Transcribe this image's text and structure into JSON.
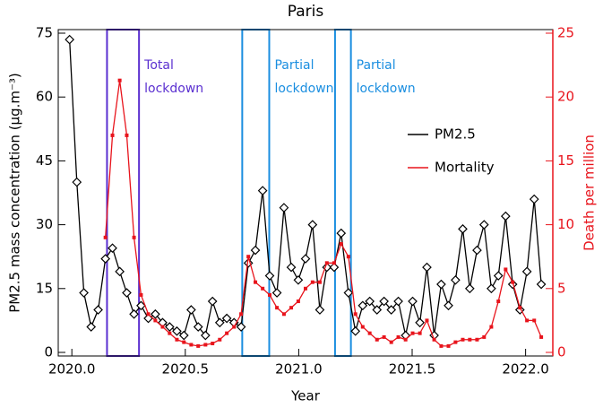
{
  "chart_data": {
    "type": "line",
    "title": "Paris",
    "xlabel": "Year",
    "ylabel": "PM2.5 mass concentration (μg.m⁻³)",
    "y2label": "Death per million",
    "xlim": [
      2019.94,
      2022.12
    ],
    "xticks": [
      {
        "value": 2020,
        "label": "2020.0"
      },
      2020.5,
      {
        "value": 2021,
        "label": "2021.0"
      },
      2021.5,
      {
        "value": 2022,
        "label": "2022.0"
      }
    ],
    "ylim": [
      0,
      75
    ],
    "yticks": [
      0,
      15,
      30,
      45,
      60,
      75
    ],
    "y2lim": [
      0,
      25
    ],
    "y2ticks": [
      0,
      5,
      10,
      15,
      20,
      25
    ],
    "legend": "right",
    "x": [
      2019.99,
      2020.022,
      2020.053,
      2020.085,
      2020.116,
      2020.148,
      2020.179,
      2020.211,
      2020.242,
      2020.274,
      2020.305,
      2020.337,
      2020.368,
      2020.4,
      2020.431,
      2020.463,
      2020.494,
      2020.526,
      2020.557,
      2020.589,
      2020.62,
      2020.652,
      2020.683,
      2020.715,
      2020.746,
      2020.778,
      2020.809,
      2020.841,
      2020.872,
      2020.904,
      2020.935,
      2020.967,
      2020.998,
      2021.03,
      2021.061,
      2021.093,
      2021.124,
      2021.156,
      2021.187,
      2021.219,
      2021.25,
      2021.282,
      2021.313,
      2021.345,
      2021.376,
      2021.408,
      2021.439,
      2021.471,
      2021.502,
      2021.534,
      2021.565,
      2021.597,
      2021.628,
      2021.66,
      2021.691,
      2021.723,
      2021.754,
      2021.786,
      2021.817,
      2021.849,
      2021.88,
      2021.912,
      2021.943,
      2021.975,
      2022.006,
      2022.038,
      2022.069
    ],
    "series": [
      {
        "name": "PM2.5",
        "color": "#000000",
        "marker": "diamond",
        "values": [
          73.5,
          40,
          14,
          6,
          10,
          22,
          24.5,
          19,
          14,
          9,
          11,
          8,
          9,
          7,
          6,
          5,
          4,
          10,
          6,
          4,
          12,
          7,
          8,
          7,
          6,
          21,
          24,
          38,
          18,
          14,
          34,
          20,
          17,
          22,
          30,
          10,
          20,
          20,
          28,
          14,
          5,
          11,
          12,
          10,
          12,
          10,
          12,
          4,
          12,
          7,
          20,
          4,
          16,
          11,
          17,
          29,
          15,
          24,
          30,
          15,
          18,
          32,
          16,
          10,
          19,
          36,
          16
        ]
      },
      {
        "name": "Mortality",
        "color": "#e8141c",
        "marker": "square",
        "axis": "y2",
        "values": [
          null,
          null,
          null,
          null,
          null,
          9,
          17,
          21.3,
          17,
          9,
          4.5,
          3,
          2.5,
          2,
          1.5,
          1,
          0.8,
          0.6,
          0.5,
          0.6,
          0.7,
          1,
          1.5,
          2,
          3,
          7.5,
          5.5,
          5,
          4.5,
          3.5,
          3,
          3.5,
          4,
          5,
          5.5,
          5.5,
          7,
          7,
          8.5,
          7.5,
          3,
          2,
          1.5,
          1,
          1.2,
          0.8,
          1.2,
          1,
          1.5,
          1.5,
          2.5,
          1,
          0.5,
          0.5,
          0.8,
          1,
          1,
          1,
          1.2,
          2,
          4,
          6.5,
          5.5,
          3.5,
          2.5,
          2.5,
          1.2
        ]
      }
    ],
    "lockdowns": [
      {
        "label": [
          "Total",
          "lockdown"
        ],
        "start": 2020.155,
        "end": 2020.296,
        "color": "#5a2fd0"
      },
      {
        "label": [
          "Partial",
          "lockdown"
        ],
        "start": 2020.751,
        "end": 2020.87,
        "color": "#1a8ee0"
      },
      {
        "label": [
          "Partial",
          "lockdown"
        ],
        "start": 2021.16,
        "end": 2021.23,
        "color": "#1a8ee0"
      }
    ]
  }
}
